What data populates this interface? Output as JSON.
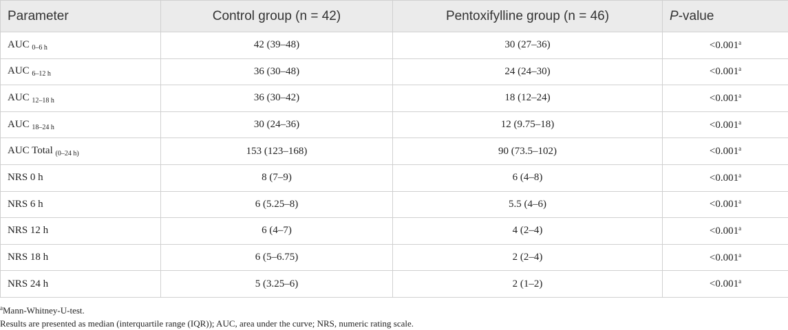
{
  "table": {
    "header": [
      "Parameter",
      "Control group (n = 42)",
      "Pentoxifylline group (n = 46)",
      {
        "italic": "P",
        "text": "-value"
      }
    ],
    "rows": [
      [
        {
          "text": "AUC",
          "sub": "0–6 h"
        },
        "42 (39–48)",
        "30 (27–36)",
        {
          "text": "<0.001",
          "sup": "a"
        }
      ],
      [
        {
          "text": "AUC",
          "sub": "6–12 h"
        },
        "36 (30–48)",
        "24 (24–30)",
        {
          "text": "<0.001",
          "sup": "a"
        }
      ],
      [
        {
          "text": "AUC",
          "sub": "12–18 h"
        },
        "36 (30–42)",
        "18 (12–24)",
        {
          "text": "<0.001",
          "sup": "a"
        }
      ],
      [
        {
          "text": "AUC",
          "sub": "18–24 h"
        },
        "30 (24–36)",
        "12 (9.75–18)",
        {
          "text": "<0.001",
          "sup": "a"
        }
      ],
      [
        {
          "text": "AUC Total",
          "sub": "(0–24 h)"
        },
        "153 (123–168)",
        "90 (73.5–102)",
        {
          "text": "<0.001",
          "sup": "a"
        }
      ],
      [
        "NRS 0 h",
        "8 (7–9)",
        "6 (4–8)",
        {
          "text": "<0.001",
          "sup": "a"
        }
      ],
      [
        "NRS 6 h",
        "6 (5.25–8)",
        "5.5 (4–6)",
        {
          "text": "<0.001",
          "sup": "a"
        }
      ],
      [
        "NRS 12 h",
        "6 (4–7)",
        "4 (2–4)",
        {
          "text": "<0.001",
          "sup": "a"
        }
      ],
      [
        "NRS 18 h",
        "6 (5–6.75)",
        "2 (2–4)",
        {
          "text": "<0.001",
          "sup": "a"
        }
      ],
      [
        "NRS 24 h",
        "5 (3.25–6)",
        "2 (1–2)",
        {
          "text": "<0.001",
          "sup": "a"
        }
      ]
    ]
  },
  "footnotes": [
    {
      "sup": "a",
      "text": "Mann-Whitney-U-test."
    },
    "Results are presented as median (interquartile range (IQR)); AUC, area under the curve; NRS, numeric rating scale."
  ]
}
